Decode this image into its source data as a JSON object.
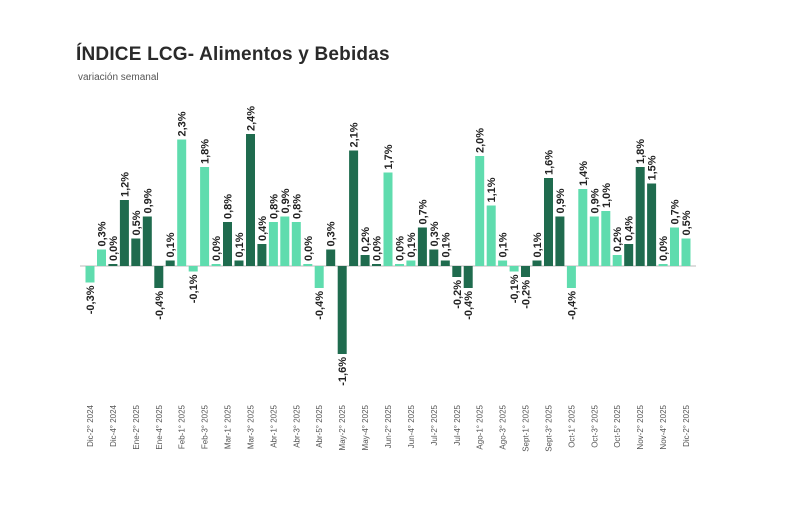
{
  "title": "ÍNDICE LCG- Alimentos y Bebidas",
  "subtitle": "variación semanal",
  "colors": {
    "light": "#5fdcae",
    "dark": "#1f6b4e",
    "axis": "#bbbbbb"
  },
  "chart_data": {
    "type": "bar",
    "title": "ÍNDICE LCG- Alimentos y Bebidas",
    "subtitle": "variación semanal",
    "xlabel": "",
    "ylabel": "",
    "ylim": [
      -1.6,
      2.4
    ],
    "grid": false,
    "categories": [
      "Dic-2° 2024",
      "",
      "Dic-4° 2024",
      "",
      "Ene-2° 2025",
      "",
      "Ene-4° 2025",
      "",
      "Feb-1° 2025",
      "",
      "Feb-3° 2025",
      "",
      "Mar-1° 2025",
      "",
      "Mar-3° 2025",
      "",
      "Abr-1° 2025",
      "",
      "Abr-3° 2025",
      "",
      "Abr-5° 2025",
      "",
      "May-2° 2025",
      "",
      "May-4° 2025",
      "",
      "Jun-2° 2025",
      "",
      "Jun-4° 2025",
      "",
      "Jul-2° 2025",
      "",
      "Jul-4° 2025",
      "",
      "Ago-1° 2025",
      "",
      "Ago-3° 2025",
      "",
      "Sept-1° 2025",
      "",
      "Sept-3° 2025",
      "",
      "Oct-1° 2025",
      "",
      "Oct-3° 2025",
      "",
      "Oct-5° 2025",
      "",
      "Nov-2° 2025",
      "",
      "Nov-4° 2025",
      "",
      "Dic-2° 2025"
    ],
    "values": [
      -0.3,
      0.3,
      0.0,
      1.2,
      0.5,
      0.9,
      -0.4,
      0.1,
      2.3,
      -0.1,
      1.8,
      0.0,
      0.8,
      0.1,
      2.4,
      0.4,
      0.8,
      0.9,
      0.8,
      0.0,
      -0.4,
      0.3,
      -1.6,
      2.1,
      0.2,
      0.0,
      1.7,
      0.0,
      0.1,
      0.7,
      0.3,
      0.1,
      -0.2,
      -0.4,
      2.0,
      1.1,
      0.1,
      -0.1,
      -0.2,
      0.1,
      1.6,
      0.9,
      -0.4,
      1.4,
      0.9,
      1.0,
      0.2,
      0.4,
      1.8,
      1.5,
      0.0,
      0.7,
      0.5
    ],
    "labels": [
      "-0,3%",
      "0,3%",
      "0,0%",
      "1,2%",
      "0,5%",
      "0,9%",
      "-0,4%",
      "0,1%",
      "2,3%",
      "-0,1%",
      "1,8%",
      "0,0%",
      "0,8%",
      "0,1%",
      "2,4%",
      "0,4%",
      "0,8%",
      "0,9%",
      "0,8%",
      "0,0%",
      "-0,4%",
      "0,3%",
      "-1,6%",
      "2,1%",
      "0,2%",
      "0,0%",
      "1,7%",
      "0,0%",
      "0,1%",
      "0,7%",
      "0,3%",
      "0,1%",
      "-0,2%",
      "-0,4%",
      "2,0%",
      "1,1%",
      "0,1%",
      "-0,1%",
      "-0,2%",
      "0,1%",
      "1,6%",
      "0,9%",
      "-0,4%",
      "1,4%",
      "0,9%",
      "1,0%",
      "0,2%",
      "0,4%",
      "1,8%",
      "1,5%",
      "0,0%",
      "0,7%",
      "0,5%"
    ],
    "shades": [
      "light",
      "light",
      "dark",
      "dark",
      "dark",
      "dark",
      "dark",
      "dark",
      "light",
      "light",
      "light",
      "light",
      "dark",
      "dark",
      "dark",
      "dark",
      "light",
      "light",
      "light",
      "light",
      "light",
      "dark",
      "dark",
      "dark",
      "dark",
      "dark",
      "light",
      "light",
      "light",
      "dark",
      "dark",
      "dark",
      "dark",
      "dark",
      "light",
      "light",
      "light",
      "light",
      "dark",
      "dark",
      "dark",
      "dark",
      "light",
      "light",
      "light",
      "light",
      "light",
      "dark",
      "dark",
      "dark",
      "light",
      "light",
      "light"
    ]
  }
}
